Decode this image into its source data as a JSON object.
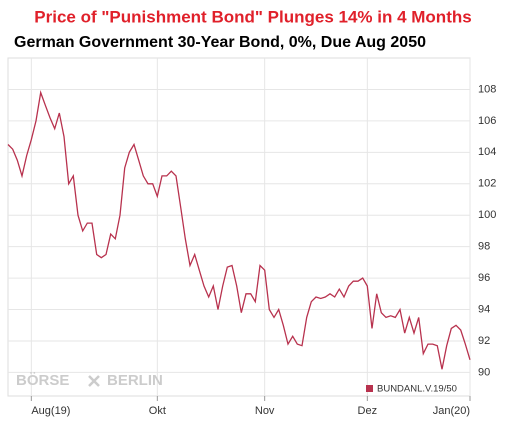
{
  "chart_data": {
    "type": "line",
    "title": "Price of \"Punishment Bond\" Plunges 14% in 4 Months",
    "subtitle": "German Government 30-Year Bond, 0%, Due Aug 2050",
    "logo": [
      "BÖRSE",
      "BERLIN"
    ],
    "series": [
      {
        "name": "BUNDANL.V.19/50",
        "color": "#b8324e",
        "values": [
          104.5,
          104.2,
          103.5,
          102.5,
          103.8,
          104.8,
          106,
          107.8,
          107,
          106.2,
          105.5,
          106.5,
          105,
          102,
          102.5,
          100,
          99,
          99.5,
          99.5,
          97.5,
          97.3,
          97.5,
          98.8,
          98.5,
          100,
          103,
          104,
          104.5,
          103.5,
          102.5,
          102,
          102,
          101.2,
          102.5,
          102.5,
          102.8,
          102.5,
          100.5,
          98.5,
          96.8,
          97.5,
          96.5,
          95.5,
          94.8,
          95.5,
          94,
          95.5,
          96.7,
          96.8,
          95.5,
          93.8,
          95,
          95,
          94.5,
          96.8,
          96.5,
          94,
          93.5,
          94,
          93,
          91.8,
          92.3,
          91.8,
          91.7,
          93.5,
          94.5,
          94.8,
          94.7,
          94.8,
          95,
          94.8,
          95.3,
          94.8,
          95.5,
          95.8,
          95.8,
          96,
          95.5,
          92.8,
          95,
          93.8,
          93.5,
          93.6,
          93.5,
          94,
          92.5,
          93.5,
          92.5,
          93.5,
          91.2,
          91.8,
          91.8,
          91.7,
          90.2,
          91.7,
          92.8,
          93,
          92.7,
          91.8,
          90.8
        ]
      }
    ],
    "xlim": [
      0,
      99
    ],
    "xticks": [
      {
        "value": 5,
        "label": "Aug(19)"
      },
      {
        "value": 32,
        "label": "Okt"
      },
      {
        "value": 55,
        "label": "Nov"
      },
      {
        "value": 77,
        "label": "Dez"
      },
      {
        "value": 99,
        "label": "Jan(20)"
      }
    ],
    "ylim": [
      88.5,
      110
    ],
    "yticks": [
      90,
      92,
      94,
      96,
      98,
      100,
      102,
      104,
      106,
      108
    ],
    "grid": true
  }
}
